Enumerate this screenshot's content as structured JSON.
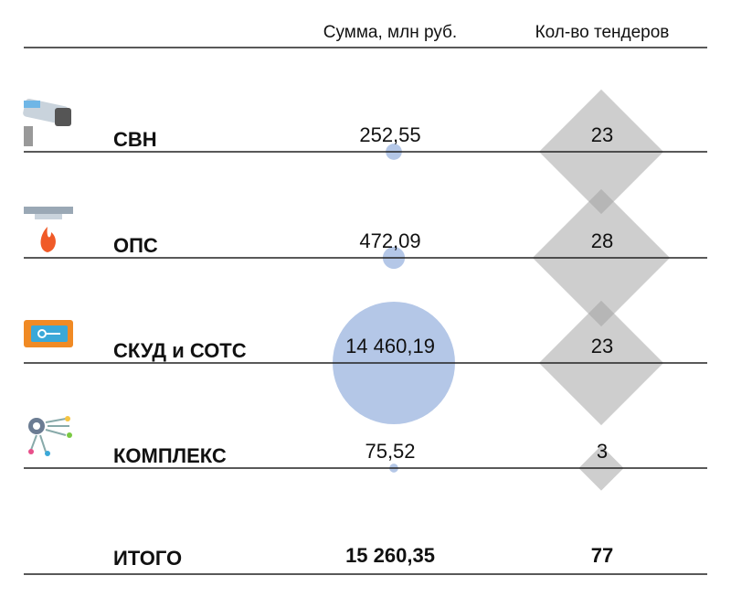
{
  "chart_data": {
    "type": "bubble-table",
    "categories": [
      "СВН",
      "ОПС",
      "СКУД и СОТС",
      "КОМПЛЕКС"
    ],
    "series": [
      {
        "name": "Сумма, млн руб.",
        "color": "#b4c7e7",
        "values": [
          252.55,
          472.09,
          14460.19,
          75.52
        ],
        "value_labels": [
          "252,55",
          "472,09",
          "14 460,19",
          "75,52"
        ]
      },
      {
        "name": "Кол-во тендеров",
        "color": "#9e9e9e",
        "values": [
          23,
          28,
          23,
          3
        ]
      }
    ],
    "totals": {
      "label": "ИТОГО",
      "values": [
        15260.35,
        77
      ],
      "value_labels": [
        "15 260,35",
        "77"
      ]
    }
  }
}
